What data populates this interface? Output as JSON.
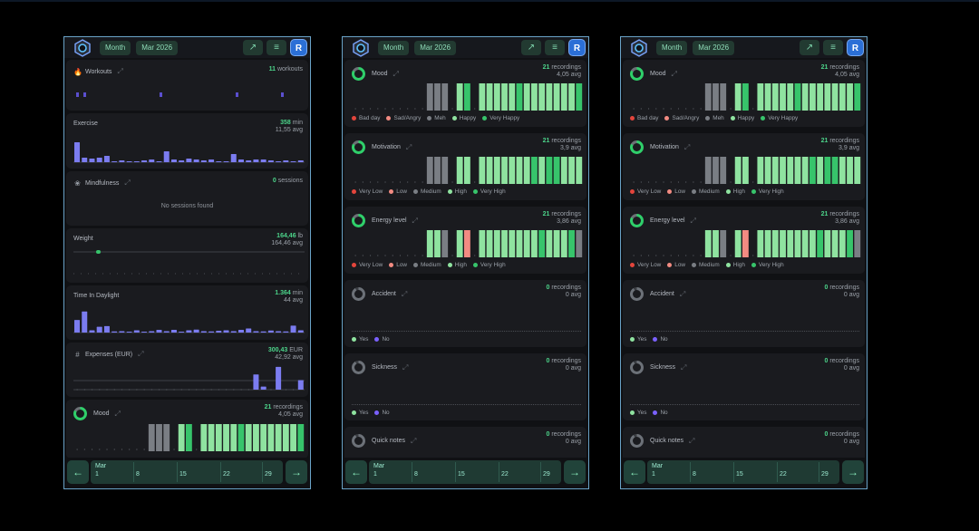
{
  "header": {
    "period_label": "Month",
    "date_label": "Mar 2026",
    "avatar_initial": "R"
  },
  "colors": {
    "accent": "#4cd48a",
    "bar_exercise": "#7b7cf0",
    "very_happy": "#37c46b",
    "happy": "#8fe3a0",
    "meh": "#7a7e84",
    "sad": "#f28b82",
    "bad": "#e4453c",
    "no": "#7b61ff"
  },
  "summary": {
    "workouts": {
      "title": "Workouts",
      "count": "11",
      "unit": "workouts"
    },
    "exercise": {
      "title": "Exercise",
      "total": "358",
      "unit": "min",
      "avg": "11,55 avg",
      "values": [
        22,
        5,
        4,
        5,
        7,
        1,
        2,
        1,
        1,
        2,
        3,
        1,
        12,
        3,
        2,
        4,
        3,
        2,
        3,
        1,
        1,
        9,
        3,
        2,
        3,
        3,
        2,
        1,
        2,
        1,
        2
      ]
    },
    "mindfulness": {
      "title": "Mindfulness",
      "count": "0",
      "unit": "sessions",
      "empty_text": "No sessions found"
    },
    "weight": {
      "title": "Weight",
      "value": "164,46",
      "unit": "lb",
      "avg": "164,46 avg"
    },
    "daylight": {
      "title": "Time In Daylight",
      "total": "1.364",
      "unit": "min",
      "avg": "44 avg",
      "values": [
        55,
        92,
        10,
        25,
        28,
        5,
        6,
        4,
        10,
        4,
        6,
        12,
        6,
        12,
        4,
        10,
        13,
        6,
        5,
        8,
        10,
        6,
        12,
        18,
        6,
        5,
        9,
        6,
        5,
        30,
        10
      ]
    },
    "expenses": {
      "title": "Expenses (EUR)",
      "total": "300,43",
      "unit": "EUR",
      "avg": "42,92 avg",
      "values": [
        0,
        0,
        0,
        0,
        0,
        0,
        0,
        0,
        0,
        0,
        0,
        0,
        0,
        0,
        0,
        0,
        0,
        0,
        0,
        0,
        0,
        0,
        0,
        0,
        40,
        8,
        0,
        60,
        0,
        0,
        25
      ]
    },
    "mood": {
      "title": "Mood",
      "count": "21",
      "unit": "recordings",
      "avg": "4,05 avg"
    }
  },
  "panels": {
    "mood": {
      "title": "Mood",
      "count": "21",
      "unit": "recordings",
      "avg": "4,05 avg",
      "legend": [
        "Bad day",
        "Sad/Angry",
        "Meh",
        "Happy",
        "Very Happy"
      ],
      "bars": [
        "x",
        "x",
        "x",
        "x",
        "x",
        "x",
        "x",
        "x",
        "x",
        "x",
        "m",
        "m",
        "m",
        "x",
        "h",
        "v",
        "x",
        "h",
        "h",
        "h",
        "h",
        "h",
        "v",
        "h",
        "h",
        "h",
        "h",
        "h",
        "h",
        "h",
        "v"
      ]
    },
    "motivation": {
      "title": "Motivation",
      "count": "21",
      "unit": "recordings",
      "avg": "3,9 avg",
      "legend": [
        "Very Low",
        "Low",
        "Medium",
        "High",
        "Very High"
      ],
      "bars": [
        "x",
        "x",
        "x",
        "x",
        "x",
        "x",
        "x",
        "x",
        "x",
        "x",
        "m",
        "m",
        "m",
        "x",
        "h",
        "h",
        "x",
        "h",
        "h",
        "h",
        "h",
        "h",
        "h",
        "h",
        "v",
        "h",
        "v",
        "v",
        "h",
        "h",
        "h"
      ]
    },
    "energy": {
      "title": "Energy level",
      "count": "21",
      "unit": "recordings",
      "avg": "3,86 avg",
      "legend": [
        "Very Low",
        "Low",
        "Medium",
        "High",
        "Very High"
      ],
      "bars": [
        "x",
        "x",
        "x",
        "x",
        "x",
        "x",
        "x",
        "x",
        "x",
        "x",
        "h",
        "h",
        "m",
        "x",
        "h",
        "s",
        "x",
        "h",
        "h",
        "h",
        "h",
        "h",
        "h",
        "h",
        "h",
        "v",
        "h",
        "h",
        "h",
        "v",
        "m"
      ]
    },
    "accident": {
      "title": "Accident",
      "count": "0",
      "unit": "recordings",
      "avg": "0 avg",
      "legend": [
        "Yes",
        "No"
      ]
    },
    "sickness": {
      "title": "Sickness",
      "count": "0",
      "unit": "recordings",
      "avg": "0 avg",
      "legend": [
        "Yes",
        "No"
      ]
    },
    "notes": {
      "title": "Quick notes",
      "count": "0",
      "unit": "recordings",
      "avg": "0 avg"
    }
  },
  "timeline": {
    "month": "Mar",
    "ticks": [
      "1",
      "8",
      "15",
      "22",
      "29"
    ],
    "prev_icon": "arrow-left-icon",
    "next_icon": "arrow-right-icon"
  }
}
